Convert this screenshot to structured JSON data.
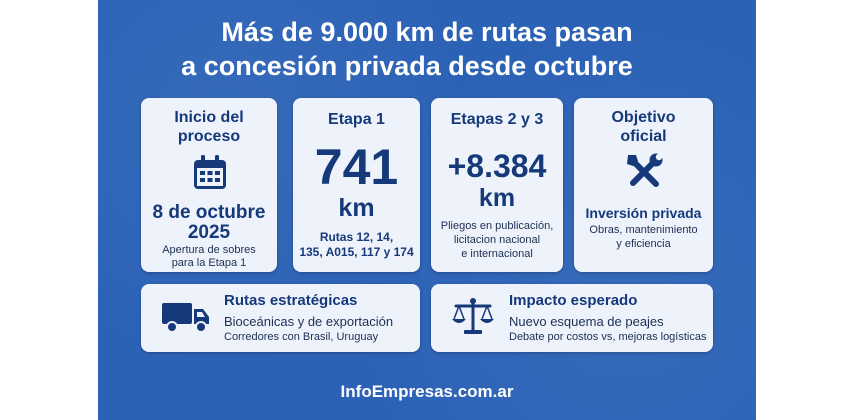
{
  "headline": {
    "line1": "Más de 9.000 km de rutas pasan",
    "line2": "a concesión privada desde octubre"
  },
  "cards": {
    "inicio": {
      "title_l1": "Inicio del",
      "title_l2": "proceso",
      "icon": "calendar-icon",
      "date_l1": "8 de octubre",
      "date_l2": "2025",
      "desc_l1": "Apertura de sobres",
      "desc_l2": "para la Etapa 1"
    },
    "etapa1": {
      "title": "Etapa 1",
      "value": "741",
      "unit": "km",
      "desc_l1": "Rutas 12, 14,",
      "desc_l2": "135, A015, 117 y 174"
    },
    "etapas23": {
      "title": "Etapas 2 y 3",
      "value": "+8.384",
      "unit": "km",
      "desc_l1": "Pliegos en publicación,",
      "desc_l2": "licitacion nacional",
      "desc_l3": "e internacional"
    },
    "objetivo": {
      "title_l1": "Objetivo",
      "title_l2": "oficial",
      "icon": "tools-icon",
      "headline": "Inversión privada",
      "desc_l1": "Obras, mantenimiento",
      "desc_l2": "y eficiencia"
    },
    "rutas": {
      "icon": "truck-icon",
      "title": "Rutas estratégicas",
      "line1": "Bioceánicas y de exportación",
      "line2": "Corredores con Brasil, Uruguay"
    },
    "impacto": {
      "icon": "scales-icon",
      "title": "Impacto esperado",
      "line1": "Nuevo esquema de peajes",
      "line2": "Debate por costos vs, mejoras logísticas"
    }
  },
  "footer": "InfoEmpresas.com.ar",
  "colors": {
    "background": "#2c62b6",
    "card": "#eef3fb",
    "navy": "#16397a"
  }
}
